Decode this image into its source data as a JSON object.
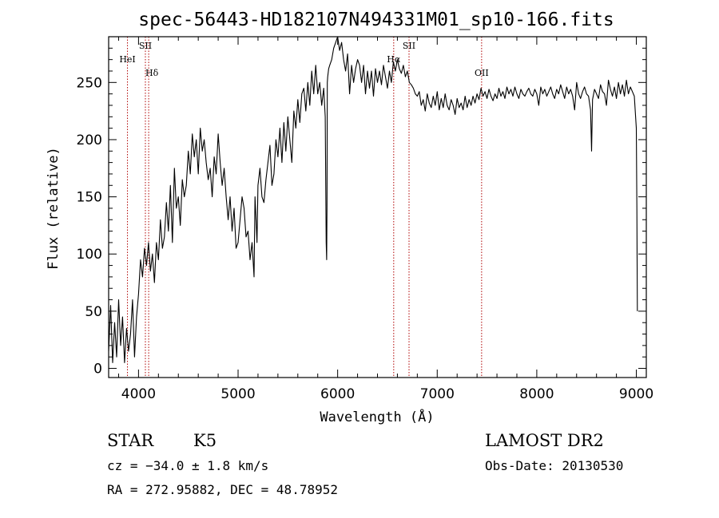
{
  "chart_data": {
    "type": "line",
    "title": "spec-56443-HD182107N494331M01_sp10-166.fits",
    "xlabel": "Wavelength (Å)",
    "ylabel": "Flux (relative)",
    "xlim": [
      3700,
      9100
    ],
    "ylim": [
      -8,
      290
    ],
    "xticks": [
      4000,
      5000,
      6000,
      7000,
      8000,
      9000
    ],
    "yticks": [
      0,
      50,
      100,
      150,
      200,
      250
    ],
    "grid": false,
    "series": [
      {
        "x": [
          3700,
          3720,
          3740,
          3760,
          3780,
          3800,
          3820,
          3840,
          3860,
          3880,
          3900,
          3920,
          3940,
          3960,
          3980,
          4000,
          4020,
          4040,
          4060,
          4080,
          4100,
          4120,
          4140,
          4160,
          4180,
          4200,
          4220,
          4240,
          4260,
          4280,
          4300,
          4320,
          4340,
          4360,
          4380,
          4400,
          4420,
          4440,
          4460,
          4480,
          4500,
          4520,
          4540,
          4560,
          4580,
          4600,
          4620,
          4640,
          4660,
          4680,
          4700,
          4720,
          4740,
          4760,
          4780,
          4800,
          4820,
          4840,
          4860,
          4880,
          4900,
          4920,
          4940,
          4960,
          4980,
          5000,
          5020,
          5040,
          5060,
          5080,
          5100,
          5120,
          5140,
          5160,
          5170,
          5180,
          5190,
          5200,
          5220,
          5240,
          5260,
          5280,
          5300,
          5320,
          5340,
          5360,
          5380,
          5400,
          5420,
          5440,
          5460,
          5480,
          5500,
          5520,
          5540,
          5560,
          5580,
          5600,
          5620,
          5640,
          5660,
          5680,
          5700,
          5720,
          5740,
          5760,
          5780,
          5800,
          5820,
          5840,
          5860,
          5875,
          5885,
          5890,
          5893,
          5896,
          5900,
          5910,
          5920,
          5940,
          5960,
          5980,
          6000,
          6020,
          6040,
          6060,
          6080,
          6100,
          6120,
          6140,
          6160,
          6180,
          6200,
          6220,
          6240,
          6260,
          6280,
          6300,
          6320,
          6340,
          6360,
          6380,
          6400,
          6420,
          6440,
          6460,
          6480,
          6500,
          6520,
          6540,
          6560,
          6580,
          6600,
          6620,
          6640,
          6660,
          6680,
          6700,
          6720,
          6740,
          6760,
          6780,
          6800,
          6820,
          6840,
          6860,
          6880,
          6900,
          6920,
          6940,
          6960,
          6980,
          7000,
          7020,
          7040,
          7060,
          7080,
          7100,
          7120,
          7140,
          7160,
          7180,
          7200,
          7220,
          7240,
          7260,
          7280,
          7300,
          7320,
          7340,
          7360,
          7380,
          7400,
          7420,
          7440,
          7460,
          7480,
          7500,
          7520,
          7540,
          7560,
          7580,
          7600,
          7620,
          7640,
          7660,
          7680,
          7700,
          7720,
          7740,
          7760,
          7780,
          7800,
          7820,
          7840,
          7860,
          7880,
          7900,
          7920,
          7940,
          7960,
          7980,
          8000,
          8020,
          8040,
          8060,
          8080,
          8100,
          8120,
          8140,
          8160,
          8180,
          8200,
          8220,
          8240,
          8260,
          8280,
          8300,
          8320,
          8340,
          8360,
          8380,
          8400,
          8420,
          8440,
          8460,
          8480,
          8500,
          8520,
          8540,
          8550,
          8560,
          8580,
          8600,
          8620,
          8640,
          8660,
          8680,
          8700,
          8720,
          8740,
          8760,
          8780,
          8800,
          8820,
          8840,
          8860,
          8880,
          8900,
          8920,
          8940,
          8960,
          8980,
          9000,
          9005,
          9010
        ],
        "y": [
          15,
          55,
          5,
          40,
          10,
          60,
          20,
          45,
          5,
          35,
          15,
          30,
          60,
          10,
          45,
          65,
          95,
          80,
          105,
          90,
          110,
          85,
          100,
          75,
          110,
          95,
          130,
          105,
          115,
          145,
          120,
          160,
          110,
          175,
          140,
          150,
          125,
          165,
          150,
          160,
          190,
          170,
          205,
          185,
          200,
          170,
          210,
          190,
          200,
          180,
          165,
          175,
          150,
          185,
          170,
          205,
          180,
          160,
          175,
          150,
          130,
          150,
          120,
          140,
          105,
          110,
          130,
          150,
          140,
          115,
          120,
          95,
          110,
          80,
          150,
          130,
          110,
          160,
          175,
          150,
          145,
          165,
          180,
          195,
          160,
          170,
          200,
          185,
          210,
          180,
          215,
          190,
          220,
          200,
          180,
          225,
          210,
          235,
          215,
          240,
          245,
          225,
          250,
          230,
          260,
          240,
          265,
          240,
          250,
          230,
          245,
          220,
          110,
          95,
          140,
          250,
          255,
          262,
          265,
          270,
          280,
          285,
          290,
          278,
          285,
          270,
          260,
          275,
          240,
          265,
          250,
          262,
          270,
          265,
          250,
          265,
          240,
          260,
          245,
          260,
          238,
          262,
          250,
          260,
          248,
          265,
          255,
          245,
          260,
          250,
          268,
          260,
          270,
          262,
          258,
          265,
          255,
          260,
          250,
          248,
          245,
          240,
          238,
          242,
          230,
          235,
          225,
          240,
          232,
          228,
          238,
          230,
          242,
          226,
          236,
          228,
          240,
          230,
          226,
          235,
          230,
          222,
          236,
          228,
          232,
          226,
          238,
          228,
          235,
          230,
          238,
          232,
          240,
          235,
          245,
          238,
          242,
          236,
          244,
          238,
          234,
          240,
          236,
          245,
          238,
          242,
          236,
          246,
          240,
          244,
          238,
          246,
          240,
          236,
          244,
          240,
          238,
          242,
          245,
          240,
          238,
          244,
          240,
          230,
          246,
          240,
          244,
          238,
          242,
          246,
          240,
          236,
          244,
          240,
          248,
          242,
          236,
          246,
          240,
          244,
          238,
          226,
          250,
          240,
          236,
          242,
          246,
          240,
          238,
          226,
          190,
          235,
          244,
          240,
          236,
          248,
          242,
          240,
          230,
          252,
          244,
          238,
          246,
          236,
          250,
          240,
          248,
          238,
          252,
          240,
          246,
          242,
          238,
          210,
          140,
          50
        ]
      }
    ],
    "line_markers": [
      {
        "label": "HeI",
        "x": 3889
      },
      {
        "label": "SII",
        "x": 4069
      },
      {
        "label": "Hδ",
        "x": 4102
      },
      {
        "label": "Hα",
        "x": 6563
      },
      {
        "label": "SII",
        "x": 6717
      },
      {
        "label": "OII",
        "x": 7446
      }
    ],
    "marker_color": "#b00000"
  },
  "info": {
    "object_class": "STAR",
    "subclass": "K5",
    "survey": "LAMOST DR2",
    "redshift": "cz = −34.0 ± 1.8 km/s",
    "obs_date": "Obs-Date: 20130530",
    "coords": "RA = 272.95882, DEC =  48.78952"
  }
}
